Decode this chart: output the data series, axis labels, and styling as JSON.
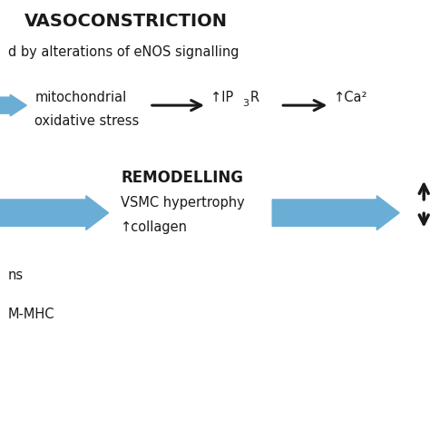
{
  "bg_color": "#ffffff",
  "title_vasoconstriction": "VASOCONSTRICTION",
  "subtitle_vasoconstriction": "d by alterations of eNOS signalling",
  "mito_text_line1": "mitochondrial",
  "mito_text_line2": "oxidative stress",
  "ip3r_text": "↑IP ",
  "ip3r_sub": "3",
  "ip3r_end": "R",
  "ca_text": "↑Ca²",
  "remodelling_title": "REMODELLING",
  "remodelling_text1": "VSMC hypertrophy",
  "remodelling_text2": "↑collagen",
  "bottom_text1": "ns",
  "bottom_text2": "M-MHC",
  "arrow_color_blue": "#6aaed6",
  "arrow_color_black": "#1a1a1a",
  "fig_width": 4.74,
  "fig_height": 4.74,
  "dpi": 100
}
